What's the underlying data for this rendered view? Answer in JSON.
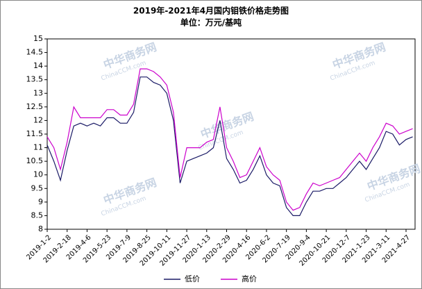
{
  "chart_data": {
    "type": "line",
    "title": "2019年-2021年4月国内钼铁价格走势图",
    "subtitle": "单位：万元/基吨",
    "watermarks": [
      "中华商务网",
      "ChinaCCM.com"
    ],
    "categories": [
      "2019-1-2",
      null,
      null,
      "2019-2-18",
      null,
      null,
      "2019-4-6",
      null,
      null,
      "2019-5-23",
      null,
      null,
      "2019-7-9",
      null,
      null,
      "2019-8-25",
      null,
      null,
      "2019-10-11",
      null,
      null,
      "2019-11-27",
      null,
      null,
      "2020-1-13",
      null,
      null,
      "2020-2-29",
      null,
      null,
      "2020-4-16",
      null,
      null,
      "2020-6-2",
      null,
      null,
      "2020-7-19",
      null,
      null,
      "2020-9-4",
      null,
      null,
      "2020-10-21",
      null,
      null,
      "2020-12-7",
      null,
      null,
      "2021-1-23",
      null,
      null,
      "2021-3-11",
      null,
      null,
      "2021-4-27",
      null
    ],
    "series": [
      {
        "name": "低价",
        "color": "#1a1a66",
        "values": [
          11.1,
          10.5,
          9.8,
          10.9,
          11.8,
          11.9,
          11.8,
          11.9,
          11.8,
          12.1,
          12.1,
          11.9,
          11.9,
          12.3,
          13.6,
          13.6,
          13.4,
          13.3,
          13.0,
          12.0,
          9.7,
          10.5,
          10.6,
          10.7,
          10.8,
          11.0,
          12.0,
          10.6,
          10.2,
          9.7,
          9.8,
          10.2,
          10.7,
          10.0,
          9.7,
          9.6,
          8.8,
          8.5,
          8.5,
          9.0,
          9.4,
          9.4,
          9.5,
          9.5,
          9.7,
          9.9,
          10.2,
          10.5,
          10.2,
          10.6,
          11.0,
          11.6,
          11.5,
          11.1,
          11.3,
          11.4
        ]
      },
      {
        "name": "高价",
        "color": "#cc00cc",
        "values": [
          11.4,
          11.0,
          10.2,
          11.2,
          12.5,
          12.1,
          12.1,
          12.1,
          12.1,
          12.4,
          12.4,
          12.2,
          12.2,
          12.6,
          13.9,
          13.9,
          13.8,
          13.6,
          13.3,
          12.3,
          9.9,
          11.0,
          11.0,
          11.0,
          11.2,
          11.3,
          12.5,
          11.0,
          10.5,
          9.9,
          10.0,
          10.5,
          11.0,
          10.3,
          10.0,
          9.8,
          9.0,
          8.7,
          8.8,
          9.3,
          9.7,
          9.6,
          9.7,
          9.8,
          9.9,
          10.2,
          10.5,
          10.8,
          10.5,
          11.0,
          11.4,
          11.9,
          11.8,
          11.5,
          11.6,
          11.7
        ]
      }
    ],
    "ylim": [
      8,
      15
    ],
    "yticks": [
      8,
      8.5,
      9,
      9.5,
      10,
      10.5,
      11,
      11.5,
      12,
      12.5,
      13,
      13.5,
      14,
      14.5,
      15
    ],
    "grid": false,
    "legend": "bottom"
  }
}
